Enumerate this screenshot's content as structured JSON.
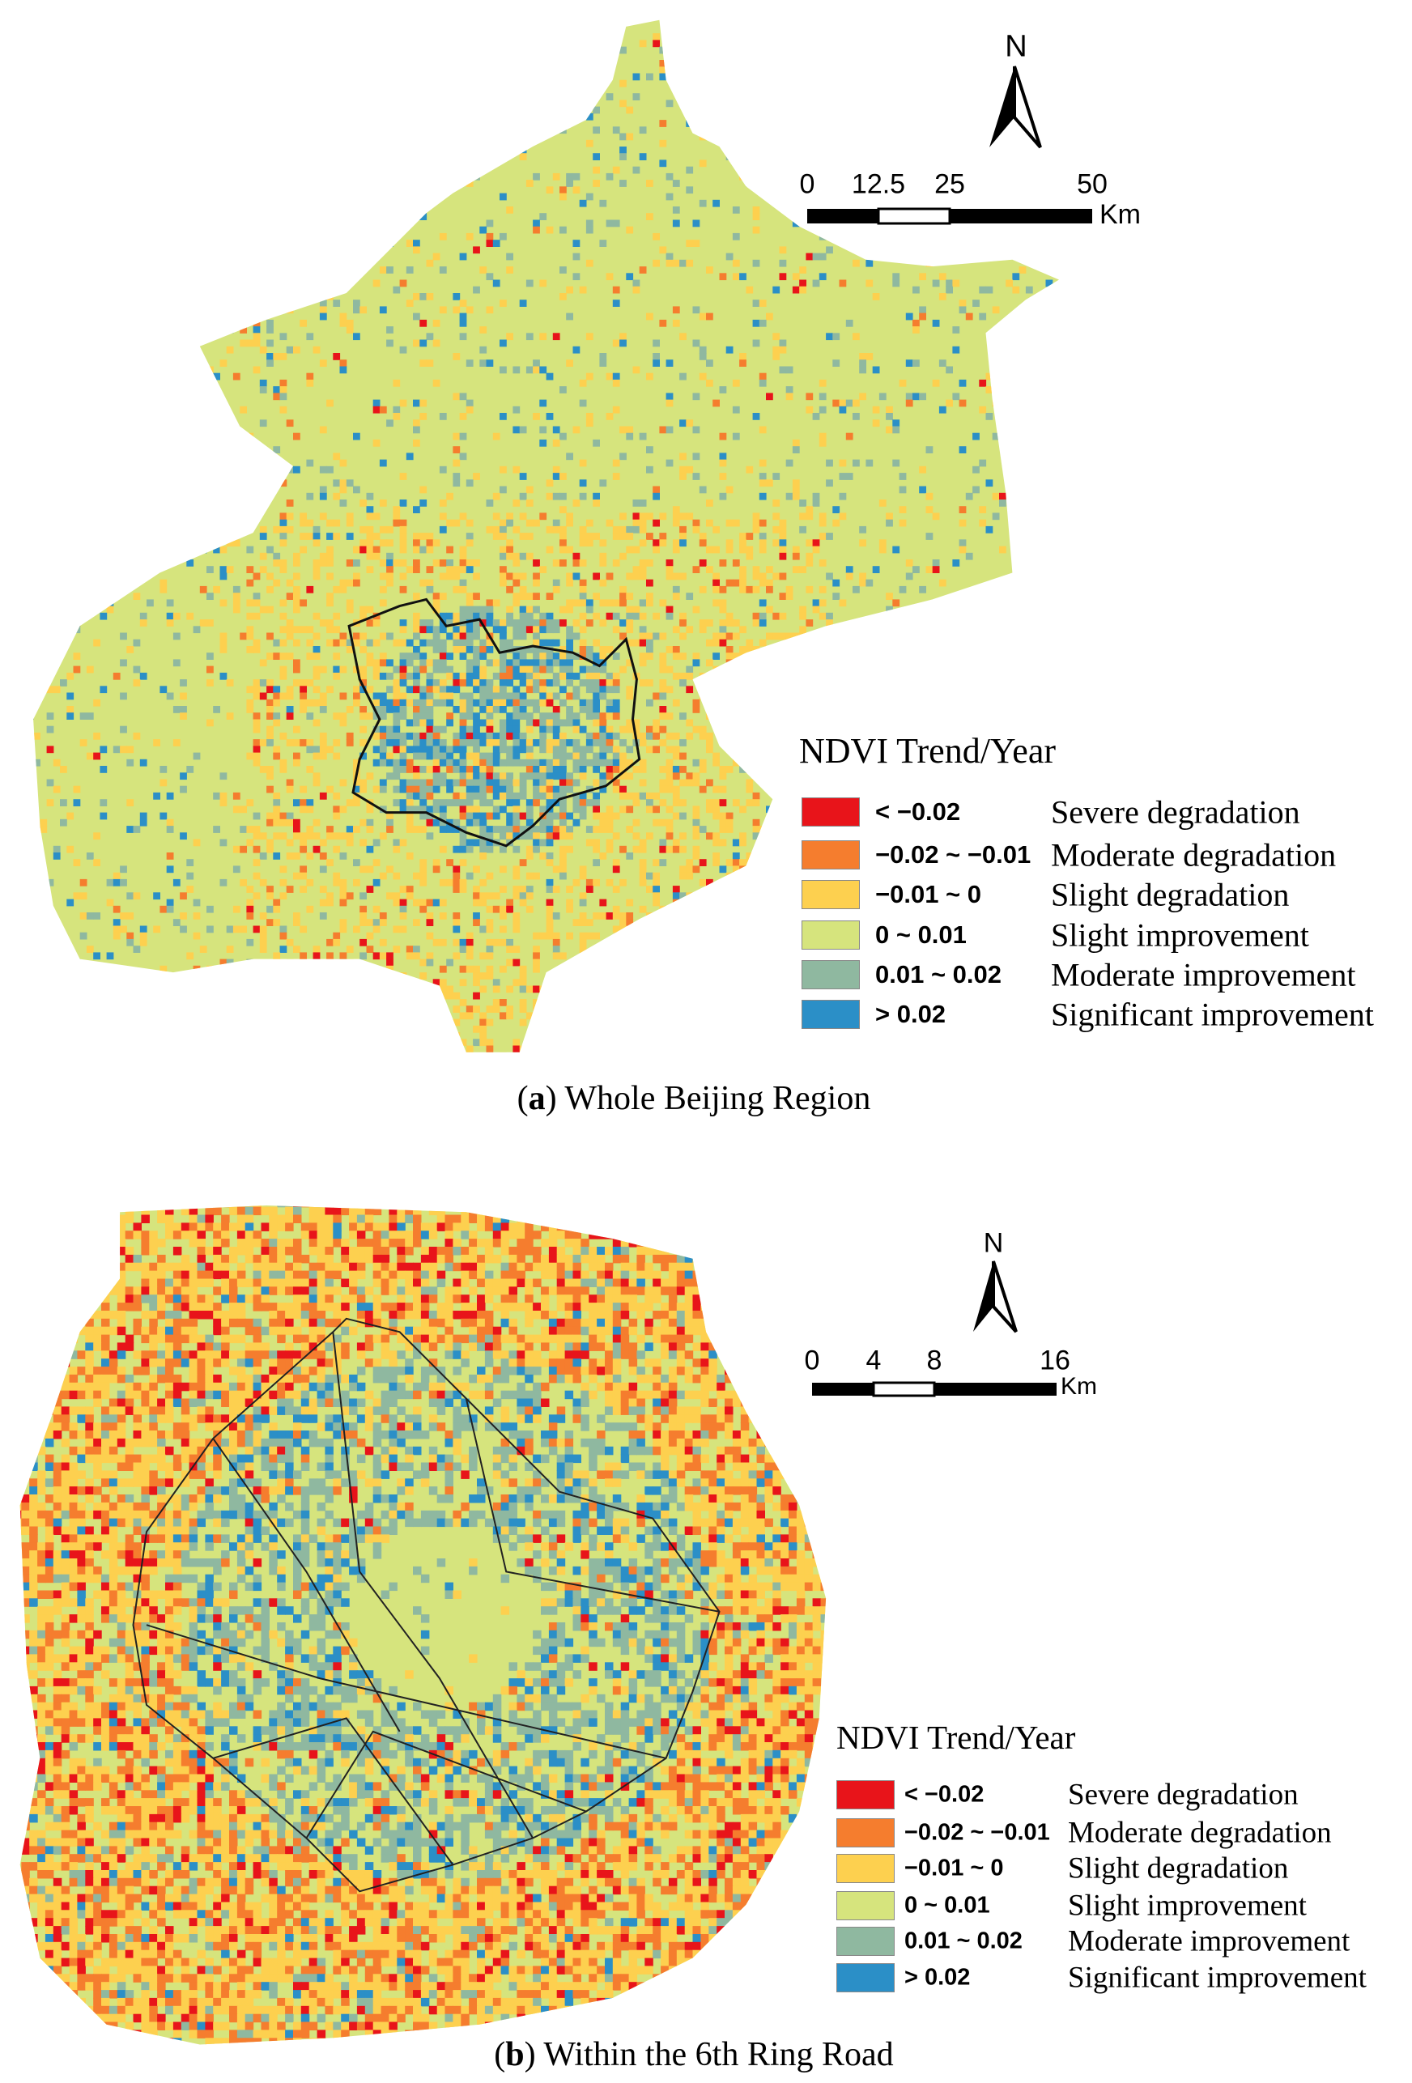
{
  "colors": {
    "severe_degradation": "#e8141a",
    "moderate_degradation": "#f57d2e",
    "slight_degradation": "#fdd04f",
    "slight_improvement": "#d6e47d",
    "moderate_improvement": "#8fb8a0",
    "significant_improvement": "#2b8fc7"
  },
  "panel_a": {
    "caption_label": "a",
    "caption_text": "Whole Beijing Region",
    "north_label": "N",
    "scale_ticks": [
      "0",
      "12.5",
      "25",
      "50"
    ],
    "scale_unit": "Km",
    "legend": {
      "title": "NDVI Trend/Year",
      "items": [
        {
          "range": "< −0.02",
          "label": "Severe degradation",
          "color": "#e8141a"
        },
        {
          "range": "−0.02 ~ −0.01",
          "label": "Moderate degradation",
          "color": "#f57d2e"
        },
        {
          "range": "−0.01 ~ 0",
          "label": "Slight degradation",
          "color": "#fdd04f"
        },
        {
          "range": "0 ~ 0.01",
          "label": "Slight improvement",
          "color": "#d6e47d"
        },
        {
          "range": "0.01 ~ 0.02",
          "label": "Moderate improvement",
          "color": "#8fb8a0"
        },
        {
          "range": "> 0.02",
          "label": "Significant improvement",
          "color": "#2b8fc7"
        }
      ]
    }
  },
  "panel_b": {
    "caption_label": "b",
    "caption_text": "Within the 6th Ring Road",
    "north_label": "N",
    "scale_ticks": [
      "0",
      "4",
      "8",
      "16"
    ],
    "scale_unit": "Km",
    "legend": {
      "title": "NDVI Trend/Year",
      "items": [
        {
          "range": "< −0.02",
          "label": "Severe degradation",
          "color": "#e8141a"
        },
        {
          "range": "−0.02 ~ −0.01",
          "label": "Moderate degradation",
          "color": "#f57d2e"
        },
        {
          "range": "−0.01 ~ 0",
          "label": "Slight degradation",
          "color": "#fdd04f"
        },
        {
          "range": "0 ~ 0.01",
          "label": "Slight improvement",
          "color": "#d6e47d"
        },
        {
          "range": "0.01 ~ 0.02",
          "label": "Moderate improvement",
          "color": "#8fb8a0"
        },
        {
          "range": "> 0.02",
          "label": "Significant improvement",
          "color": "#2b8fc7"
        }
      ]
    }
  }
}
